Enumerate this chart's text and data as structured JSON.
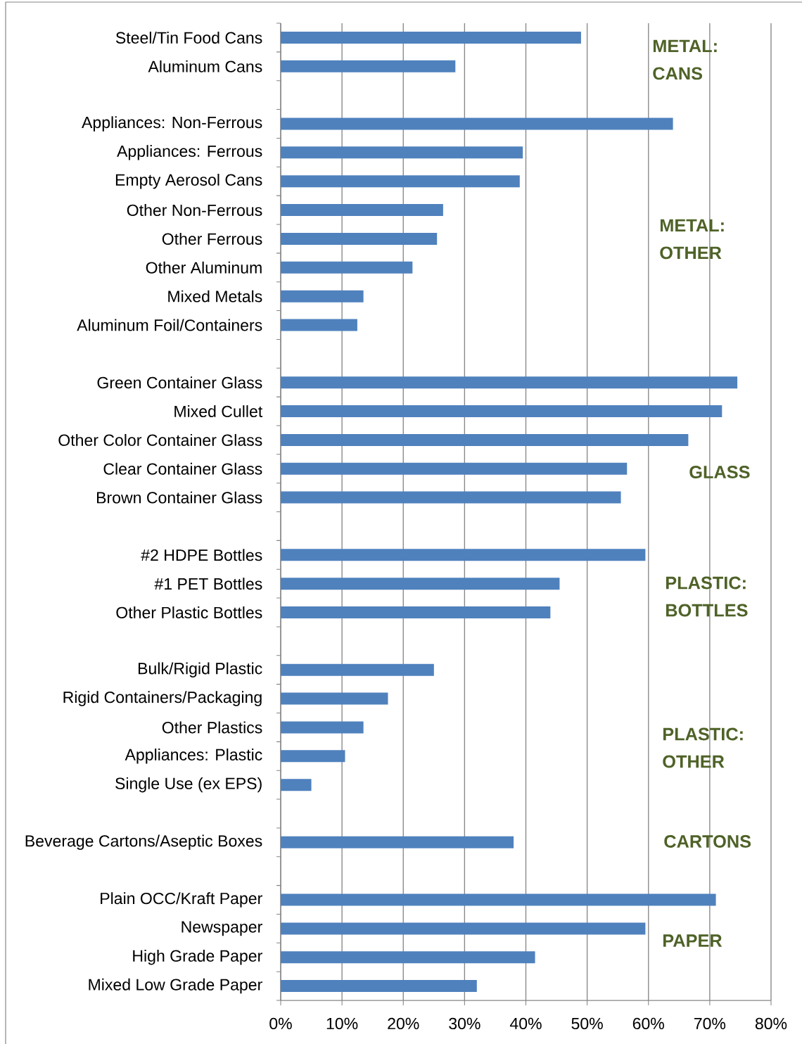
{
  "chart_data": {
    "type": "bar",
    "orientation": "horizontal",
    "categories": [
      "Steel/Tin Food Cans",
      "Aluminum Cans",
      null,
      "Appliances: Non-Ferrous",
      "Appliances: Ferrous",
      "Empty Aerosol Cans",
      "Other Non-Ferrous",
      "Other Ferrous",
      "Other Aluminum",
      "Mixed Metals",
      "Aluminum Foil/Containers",
      null,
      "Green Container Glass",
      "Mixed Cullet",
      "Other Color Container Glass",
      "Clear Container Glass",
      "Brown Container Glass",
      null,
      "#2 HDPE Bottles",
      "#1 PET Bottles",
      "Other Plastic Bottles",
      null,
      "Bulk/Rigid Plastic",
      "Rigid Containers/Packaging",
      "Other Plastics",
      "Appliances: Plastic",
      "Single Use (ex EPS)",
      null,
      "Beverage Cartons/Aseptic Boxes",
      null,
      "Plain OCC/Kraft Paper",
      "Newspaper",
      "High Grade Paper",
      "Mixed Low Grade Paper"
    ],
    "values": [
      49,
      28.5,
      null,
      64,
      39.5,
      39,
      26.5,
      25.5,
      21.5,
      13.5,
      12.5,
      null,
      74.5,
      72,
      66.5,
      56.5,
      55.5,
      null,
      59.5,
      45.5,
      44,
      null,
      25,
      17.5,
      13.5,
      10.5,
      5,
      null,
      38,
      null,
      71,
      59.5,
      41.5,
      32
    ],
    "color": "#4f81bd",
    "xlim": [
      0,
      80
    ],
    "xticks": [
      {
        "value": 0,
        "label": "0%"
      },
      {
        "value": 10,
        "label": "10%"
      },
      {
        "value": 20,
        "label": "20%"
      },
      {
        "value": 30,
        "label": "30%"
      },
      {
        "value": 40,
        "label": "40%"
      },
      {
        "value": 50,
        "label": "50%"
      },
      {
        "value": 60,
        "label": "60%"
      },
      {
        "value": 70,
        "label": "70%"
      },
      {
        "value": 80,
        "label": "80%"
      }
    ],
    "grid": "x",
    "annotations": [
      "METAL: CANS",
      "METAL: OTHER",
      "GLASS",
      "PLASTIC: BOTTLES",
      "PLASTIC: OTHER",
      "CARTONS",
      "PAPER"
    ]
  }
}
